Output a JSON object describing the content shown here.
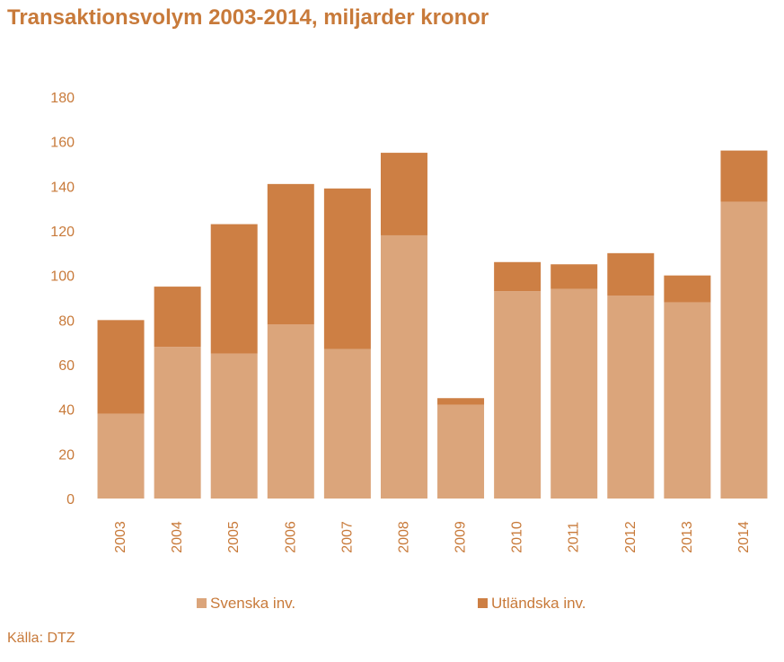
{
  "title": "Transaktionsvolym 2003-2014, miljarder kronor",
  "source": "Källa: DTZ",
  "colors": {
    "text": "#c87a3a",
    "svenska": "#dba57b",
    "utlandska": "#cd7f44"
  },
  "chart_data": {
    "type": "bar",
    "stacked": true,
    "title": "Transaktionsvolym 2003-2014, miljarder kronor",
    "categories": [
      "2003",
      "2004",
      "2005",
      "2006",
      "2007",
      "2008",
      "2009",
      "2010",
      "2011",
      "2012",
      "2013",
      "2014"
    ],
    "series": [
      {
        "name": "Svenska inv.",
        "color": "#dba57b",
        "values": [
          38,
          68,
          65,
          78,
          67,
          118,
          42,
          93,
          94,
          91,
          88,
          133
        ]
      },
      {
        "name": "Utländska inv.",
        "color": "#cd7f44",
        "values": [
          42,
          27,
          58,
          63,
          72,
          37,
          3,
          13,
          11,
          19,
          12,
          23
        ]
      }
    ],
    "ylim": [
      0,
      180
    ],
    "yticks": [
      0,
      20,
      40,
      60,
      80,
      100,
      120,
      140,
      160,
      180
    ],
    "xlabel": "",
    "ylabel": "",
    "grid": false,
    "legend": "bottom",
    "xtick_rotation": "vertical"
  }
}
